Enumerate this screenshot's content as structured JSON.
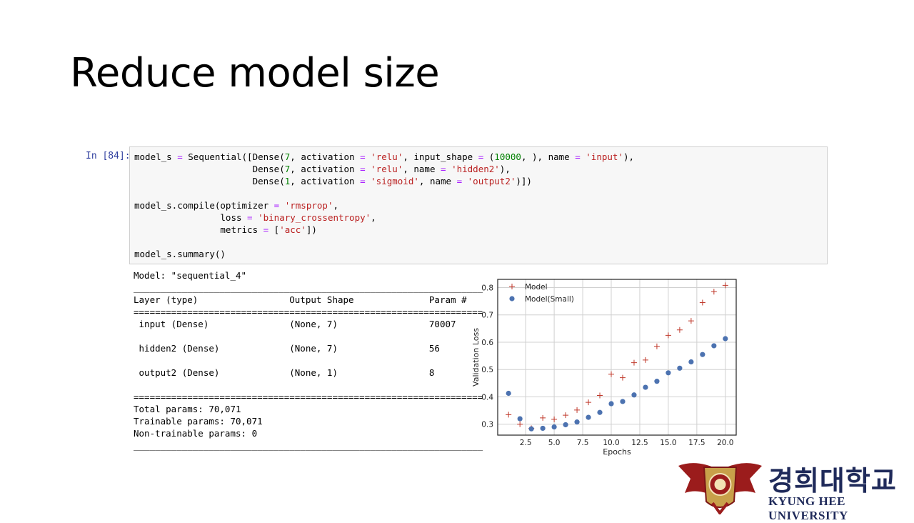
{
  "slide": {
    "title": "Reduce model size"
  },
  "notebook": {
    "prompt": "In [84]:",
    "code_lines": [
      "model_s = Sequential([Dense(7, activation = 'relu', input_shape = (10000, ), name = 'input'),",
      "                      Dense(7, activation = 'relu', name = 'hidden2'),",
      "                      Dense(1, activation = 'sigmoid', name = 'output2')])",
      "",
      "model_s.compile(optimizer = 'rmsprop',",
      "                loss = 'binary_crossentropy',",
      "                metrics = ['acc'])",
      "",
      "model_s.summary()"
    ],
    "output_lines": [
      "Model: \"sequential_4\"",
      "_________________________________________________________________",
      "Layer (type)                 Output Shape              Param #   ",
      "=================================================================",
      " input (Dense)               (None, 7)                 70007     ",
      "",
      " hidden2 (Dense)             (None, 7)                 56        ",
      "",
      " output2 (Dense)             (None, 1)                 8         ",
      "",
      "=================================================================",
      "Total params: 70,071",
      "Trainable params: 70,071",
      "Non-trainable params: 0",
      "_________________________________________________________________"
    ]
  },
  "chart_data": {
    "type": "scatter",
    "title": "",
    "xlabel": "Epochs",
    "ylabel": "Validation Loss",
    "xlim": [
      0.05,
      20.95
    ],
    "ylim": [
      0.26,
      0.83
    ],
    "xticks": [
      2.5,
      5.0,
      7.5,
      10.0,
      12.5,
      15.0,
      17.5,
      20.0
    ],
    "yticks": [
      0.3,
      0.4,
      0.5,
      0.6,
      0.7,
      0.8
    ],
    "grid": true,
    "legend_position": "top-left",
    "series": [
      {
        "name": "Model",
        "marker": "+",
        "color": "#c0392b",
        "x": [
          1,
          2,
          3,
          4,
          5,
          6,
          7,
          8,
          9,
          10,
          11,
          12,
          13,
          14,
          15,
          16,
          17,
          18,
          19,
          20
        ],
        "y": [
          0.335,
          0.3,
          0.285,
          0.323,
          0.318,
          0.333,
          0.352,
          0.38,
          0.405,
          0.483,
          0.47,
          0.525,
          0.535,
          0.585,
          0.625,
          0.645,
          0.678,
          0.745,
          0.785,
          0.808
        ]
      },
      {
        "name": "Model(Small)",
        "marker": "o",
        "color": "#4c72b0",
        "x": [
          1,
          2,
          3,
          4,
          5,
          6,
          7,
          8,
          9,
          10,
          11,
          12,
          13,
          14,
          15,
          16,
          17,
          18,
          19,
          20
        ],
        "y": [
          0.413,
          0.32,
          0.283,
          0.285,
          0.29,
          0.298,
          0.308,
          0.325,
          0.343,
          0.375,
          0.383,
          0.407,
          0.435,
          0.457,
          0.488,
          0.505,
          0.528,
          0.555,
          0.587,
          0.613
        ]
      }
    ]
  },
  "branding": {
    "korean_name": "경희대학교",
    "english_name": "KYUNG HEE UNIVERSITY",
    "emblem_color": "#9b1c1c"
  }
}
